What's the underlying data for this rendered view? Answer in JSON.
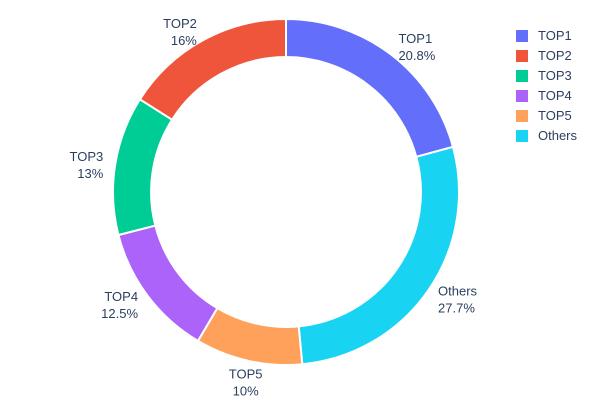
{
  "chart_data": {
    "type": "pie",
    "subtype": "donut",
    "title": "",
    "labels": [
      "TOP1",
      "TOP2",
      "TOP3",
      "TOP4",
      "TOP5",
      "Others"
    ],
    "values": [
      20.8,
      16,
      13,
      12.5,
      10,
      27.7
    ],
    "percent_labels": [
      "20.8%",
      "16%",
      "13%",
      "12.5%",
      "10%",
      "27.7%"
    ],
    "colors": [
      "#636EFA",
      "#EF553B",
      "#00CC96",
      "#AB63FA",
      "#FFA15A",
      "#19D3F3"
    ],
    "hole": 0.78,
    "rotation": 0,
    "direction": "counterclockwise",
    "label_position": "outside",
    "slice_border_color": "#ffffff",
    "slice_border_width": 2,
    "text_color": "#2a3f5f",
    "background": "#ffffff",
    "legend": {
      "position": "right",
      "entries": [
        "TOP1",
        "TOP2",
        "TOP3",
        "TOP4",
        "TOP5",
        "Others"
      ]
    }
  }
}
